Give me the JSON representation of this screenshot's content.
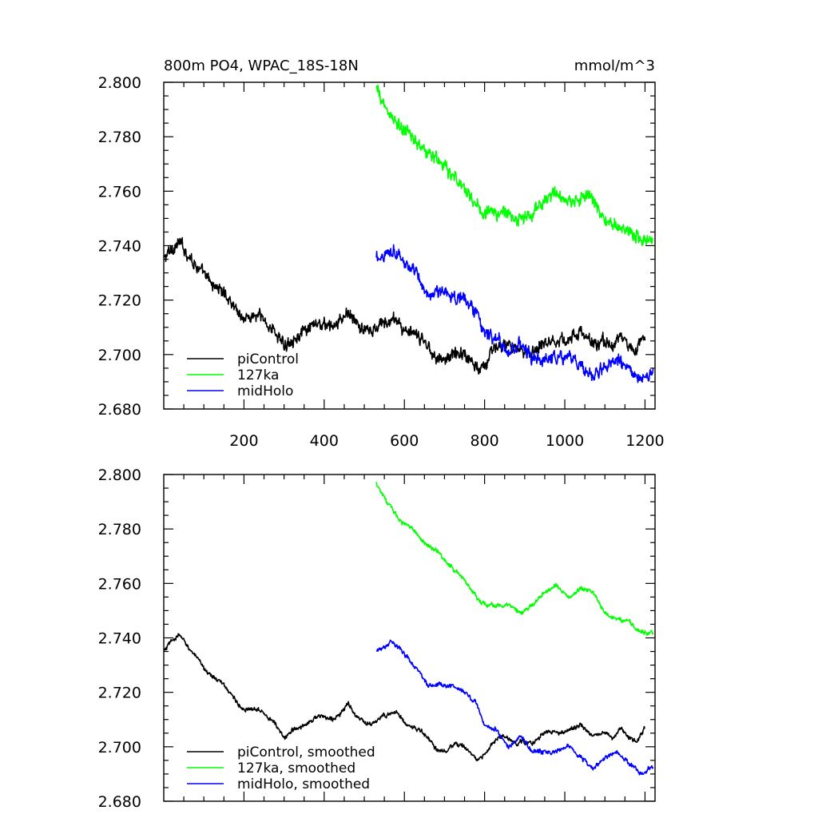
{
  "chart_data": [
    {
      "type": "line",
      "title": "800m PO4, WPAC_18S-18N",
      "units": "mmol/m^3",
      "xlim": [
        0,
        1225
      ],
      "ylim": [
        2.68,
        2.8
      ],
      "xticks": [
        200,
        400,
        600,
        800,
        1000,
        1200
      ],
      "xticklabels": [
        "200",
        "400",
        "600",
        "800",
        "1000",
        "1200"
      ],
      "yticks": [
        2.68,
        2.7,
        2.72,
        2.74,
        2.76,
        2.78,
        2.8
      ],
      "yticklabels": [
        "2.680",
        "2.700",
        "2.720",
        "2.740",
        "2.760",
        "2.780",
        "2.800"
      ],
      "legend_position": "bottom-left",
      "series": [
        {
          "name": "piControl",
          "color": "#000000",
          "noise": 0.0026,
          "x": [
            1,
            20,
            40,
            60,
            80,
            100,
            120,
            140,
            160,
            180,
            200,
            220,
            240,
            260,
            280,
            300,
            320,
            340,
            360,
            380,
            400,
            420,
            440,
            460,
            480,
            500,
            520,
            540,
            560,
            580,
            600,
            620,
            640,
            660,
            680,
            700,
            720,
            740,
            760,
            780,
            800,
            820,
            840,
            860,
            880,
            900,
            920,
            940,
            960,
            980,
            1000,
            1020,
            1040,
            1060,
            1080,
            1100,
            1120,
            1140,
            1160,
            1180,
            1200
          ],
          "y": [
            2.735,
            2.739,
            2.741,
            2.737,
            2.733,
            2.729,
            2.726,
            2.724,
            2.721,
            2.717,
            2.713,
            2.714,
            2.714,
            2.711,
            2.708,
            2.703,
            2.706,
            2.707,
            2.709,
            2.711,
            2.711,
            2.71,
            2.712,
            2.716,
            2.711,
            2.709,
            2.708,
            2.711,
            2.712,
            2.713,
            2.709,
            2.707,
            2.706,
            2.703,
            2.699,
            2.698,
            2.7,
            2.701,
            2.699,
            2.695,
            2.697,
            2.701,
            2.704,
            2.703,
            2.701,
            2.702,
            2.701,
            2.704,
            2.706,
            2.705,
            2.705,
            2.707,
            2.708,
            2.705,
            2.704,
            2.705,
            2.703,
            2.707,
            2.703,
            2.702,
            2.707
          ]
        },
        {
          "name": "127ka",
          "color": "#00ff00",
          "noise": 0.0028,
          "x": [
            530,
            560,
            590,
            620,
            650,
            680,
            710,
            740,
            770,
            800,
            830,
            860,
            890,
            920,
            950,
            980,
            1010,
            1040,
            1070,
            1100,
            1130,
            1160,
            1190,
            1220
          ],
          "y": [
            2.797,
            2.789,
            2.783,
            2.78,
            2.775,
            2.772,
            2.767,
            2.763,
            2.757,
            2.752,
            2.752,
            2.752,
            2.749,
            2.752,
            2.757,
            2.759,
            2.755,
            2.758,
            2.757,
            2.749,
            2.747,
            2.746,
            2.742,
            2.742
          ]
        },
        {
          "name": "midHolo",
          "color": "#0000ff",
          "noise": 0.0026,
          "x": [
            530,
            550,
            570,
            600,
            630,
            660,
            690,
            720,
            750,
            780,
            800,
            830,
            860,
            890,
            920,
            950,
            980,
            1010,
            1040,
            1070,
            1100,
            1130,
            1160,
            1190,
            1220
          ],
          "y": [
            2.735,
            2.737,
            2.739,
            2.734,
            2.729,
            2.722,
            2.723,
            2.722,
            2.72,
            2.716,
            2.708,
            2.706,
            2.7,
            2.704,
            2.698,
            2.698,
            2.698,
            2.7,
            2.696,
            2.692,
            2.696,
            2.698,
            2.694,
            2.69,
            2.693
          ]
        }
      ]
    },
    {
      "type": "line",
      "xlim": [
        0,
        1225
      ],
      "ylim": [
        2.68,
        2.8
      ],
      "xticks": [
        200,
        400,
        600,
        800,
        1000,
        1200
      ],
      "yticks": [
        2.68,
        2.7,
        2.72,
        2.74,
        2.76,
        2.78,
        2.8
      ],
      "yticklabels": [
        "2.680",
        "2.700",
        "2.720",
        "2.740",
        "2.760",
        "2.780",
        "2.800"
      ],
      "legend_position": "bottom-left",
      "series": [
        {
          "name": "piControl, smoothed",
          "color": "#000000",
          "noise": 0.0009,
          "x": [
            1,
            20,
            40,
            60,
            80,
            100,
            120,
            140,
            160,
            180,
            200,
            220,
            240,
            260,
            280,
            300,
            320,
            340,
            360,
            380,
            400,
            420,
            440,
            460,
            480,
            500,
            520,
            540,
            560,
            580,
            600,
            620,
            640,
            660,
            680,
            700,
            720,
            740,
            760,
            780,
            800,
            820,
            840,
            860,
            880,
            900,
            920,
            940,
            960,
            980,
            1000,
            1020,
            1040,
            1060,
            1080,
            1100,
            1120,
            1140,
            1160,
            1180,
            1200
          ],
          "y": [
            2.735,
            2.739,
            2.741,
            2.737,
            2.733,
            2.729,
            2.726,
            2.724,
            2.721,
            2.717,
            2.713,
            2.714,
            2.714,
            2.711,
            2.708,
            2.703,
            2.706,
            2.707,
            2.709,
            2.711,
            2.711,
            2.71,
            2.712,
            2.716,
            2.711,
            2.709,
            2.708,
            2.711,
            2.712,
            2.713,
            2.709,
            2.707,
            2.706,
            2.703,
            2.699,
            2.698,
            2.7,
            2.701,
            2.699,
            2.695,
            2.697,
            2.701,
            2.704,
            2.703,
            2.701,
            2.702,
            2.701,
            2.704,
            2.706,
            2.705,
            2.705,
            2.707,
            2.708,
            2.705,
            2.704,
            2.705,
            2.703,
            2.707,
            2.703,
            2.702,
            2.707
          ]
        },
        {
          "name": "127ka, smoothed",
          "color": "#00ff00",
          "noise": 0.0009,
          "x": [
            530,
            560,
            590,
            620,
            650,
            680,
            710,
            740,
            770,
            800,
            830,
            860,
            890,
            920,
            950,
            980,
            1010,
            1040,
            1070,
            1100,
            1130,
            1160,
            1190,
            1220
          ],
          "y": [
            2.797,
            2.789,
            2.783,
            2.78,
            2.775,
            2.772,
            2.767,
            2.763,
            2.757,
            2.752,
            2.752,
            2.752,
            2.749,
            2.752,
            2.757,
            2.759,
            2.755,
            2.758,
            2.757,
            2.749,
            2.747,
            2.746,
            2.742,
            2.742
          ]
        },
        {
          "name": "midHolo, smoothed",
          "color": "#0000ff",
          "noise": 0.0009,
          "x": [
            530,
            550,
            570,
            600,
            630,
            660,
            690,
            720,
            750,
            780,
            800,
            830,
            860,
            890,
            920,
            950,
            980,
            1010,
            1040,
            1070,
            1100,
            1130,
            1160,
            1190,
            1220
          ],
          "y": [
            2.735,
            2.737,
            2.739,
            2.734,
            2.729,
            2.722,
            2.723,
            2.722,
            2.72,
            2.716,
            2.708,
            2.706,
            2.7,
            2.704,
            2.698,
            2.698,
            2.698,
            2.7,
            2.696,
            2.692,
            2.696,
            2.698,
            2.694,
            2.69,
            2.693
          ]
        }
      ]
    }
  ]
}
